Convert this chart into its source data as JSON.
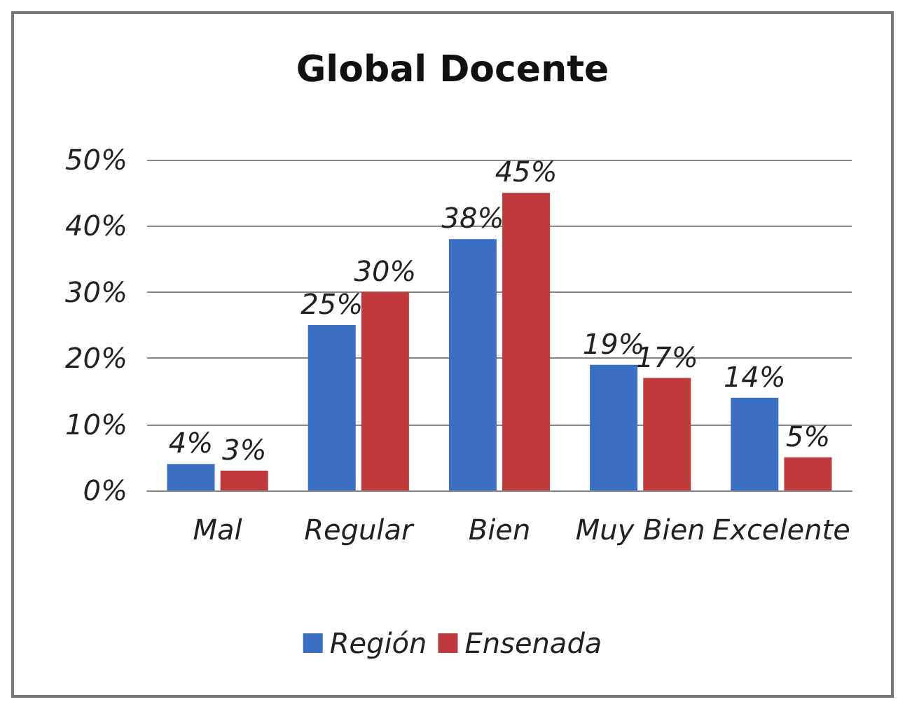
{
  "chart_data": {
    "type": "bar",
    "title": "Global Docente",
    "categories": [
      "Mal",
      "Regular",
      "Bien",
      "Muy Bien",
      "Excelente"
    ],
    "series": [
      {
        "name": "Región",
        "color": "#3b6fc4",
        "values": [
          4,
          25,
          38,
          19,
          14
        ],
        "value_labels": [
          "4%",
          "25%",
          "38%",
          "19%",
          "14%"
        ]
      },
      {
        "name": "Ensenada",
        "color": "#c0393b",
        "values": [
          3,
          30,
          45,
          17,
          5
        ],
        "value_labels": [
          "3%",
          "30%",
          "45%",
          "17%",
          "5%"
        ]
      }
    ],
    "ylim": [
      0,
      50
    ],
    "yticks": [
      {
        "value": 0,
        "label": "0%"
      },
      {
        "value": 10,
        "label": "10%"
      },
      {
        "value": 20,
        "label": "20%"
      },
      {
        "value": 30,
        "label": "30%"
      },
      {
        "value": 40,
        "label": "40%"
      },
      {
        "value": 50,
        "label": "50%"
      }
    ],
    "grid": "y",
    "legend": "bottom"
  }
}
